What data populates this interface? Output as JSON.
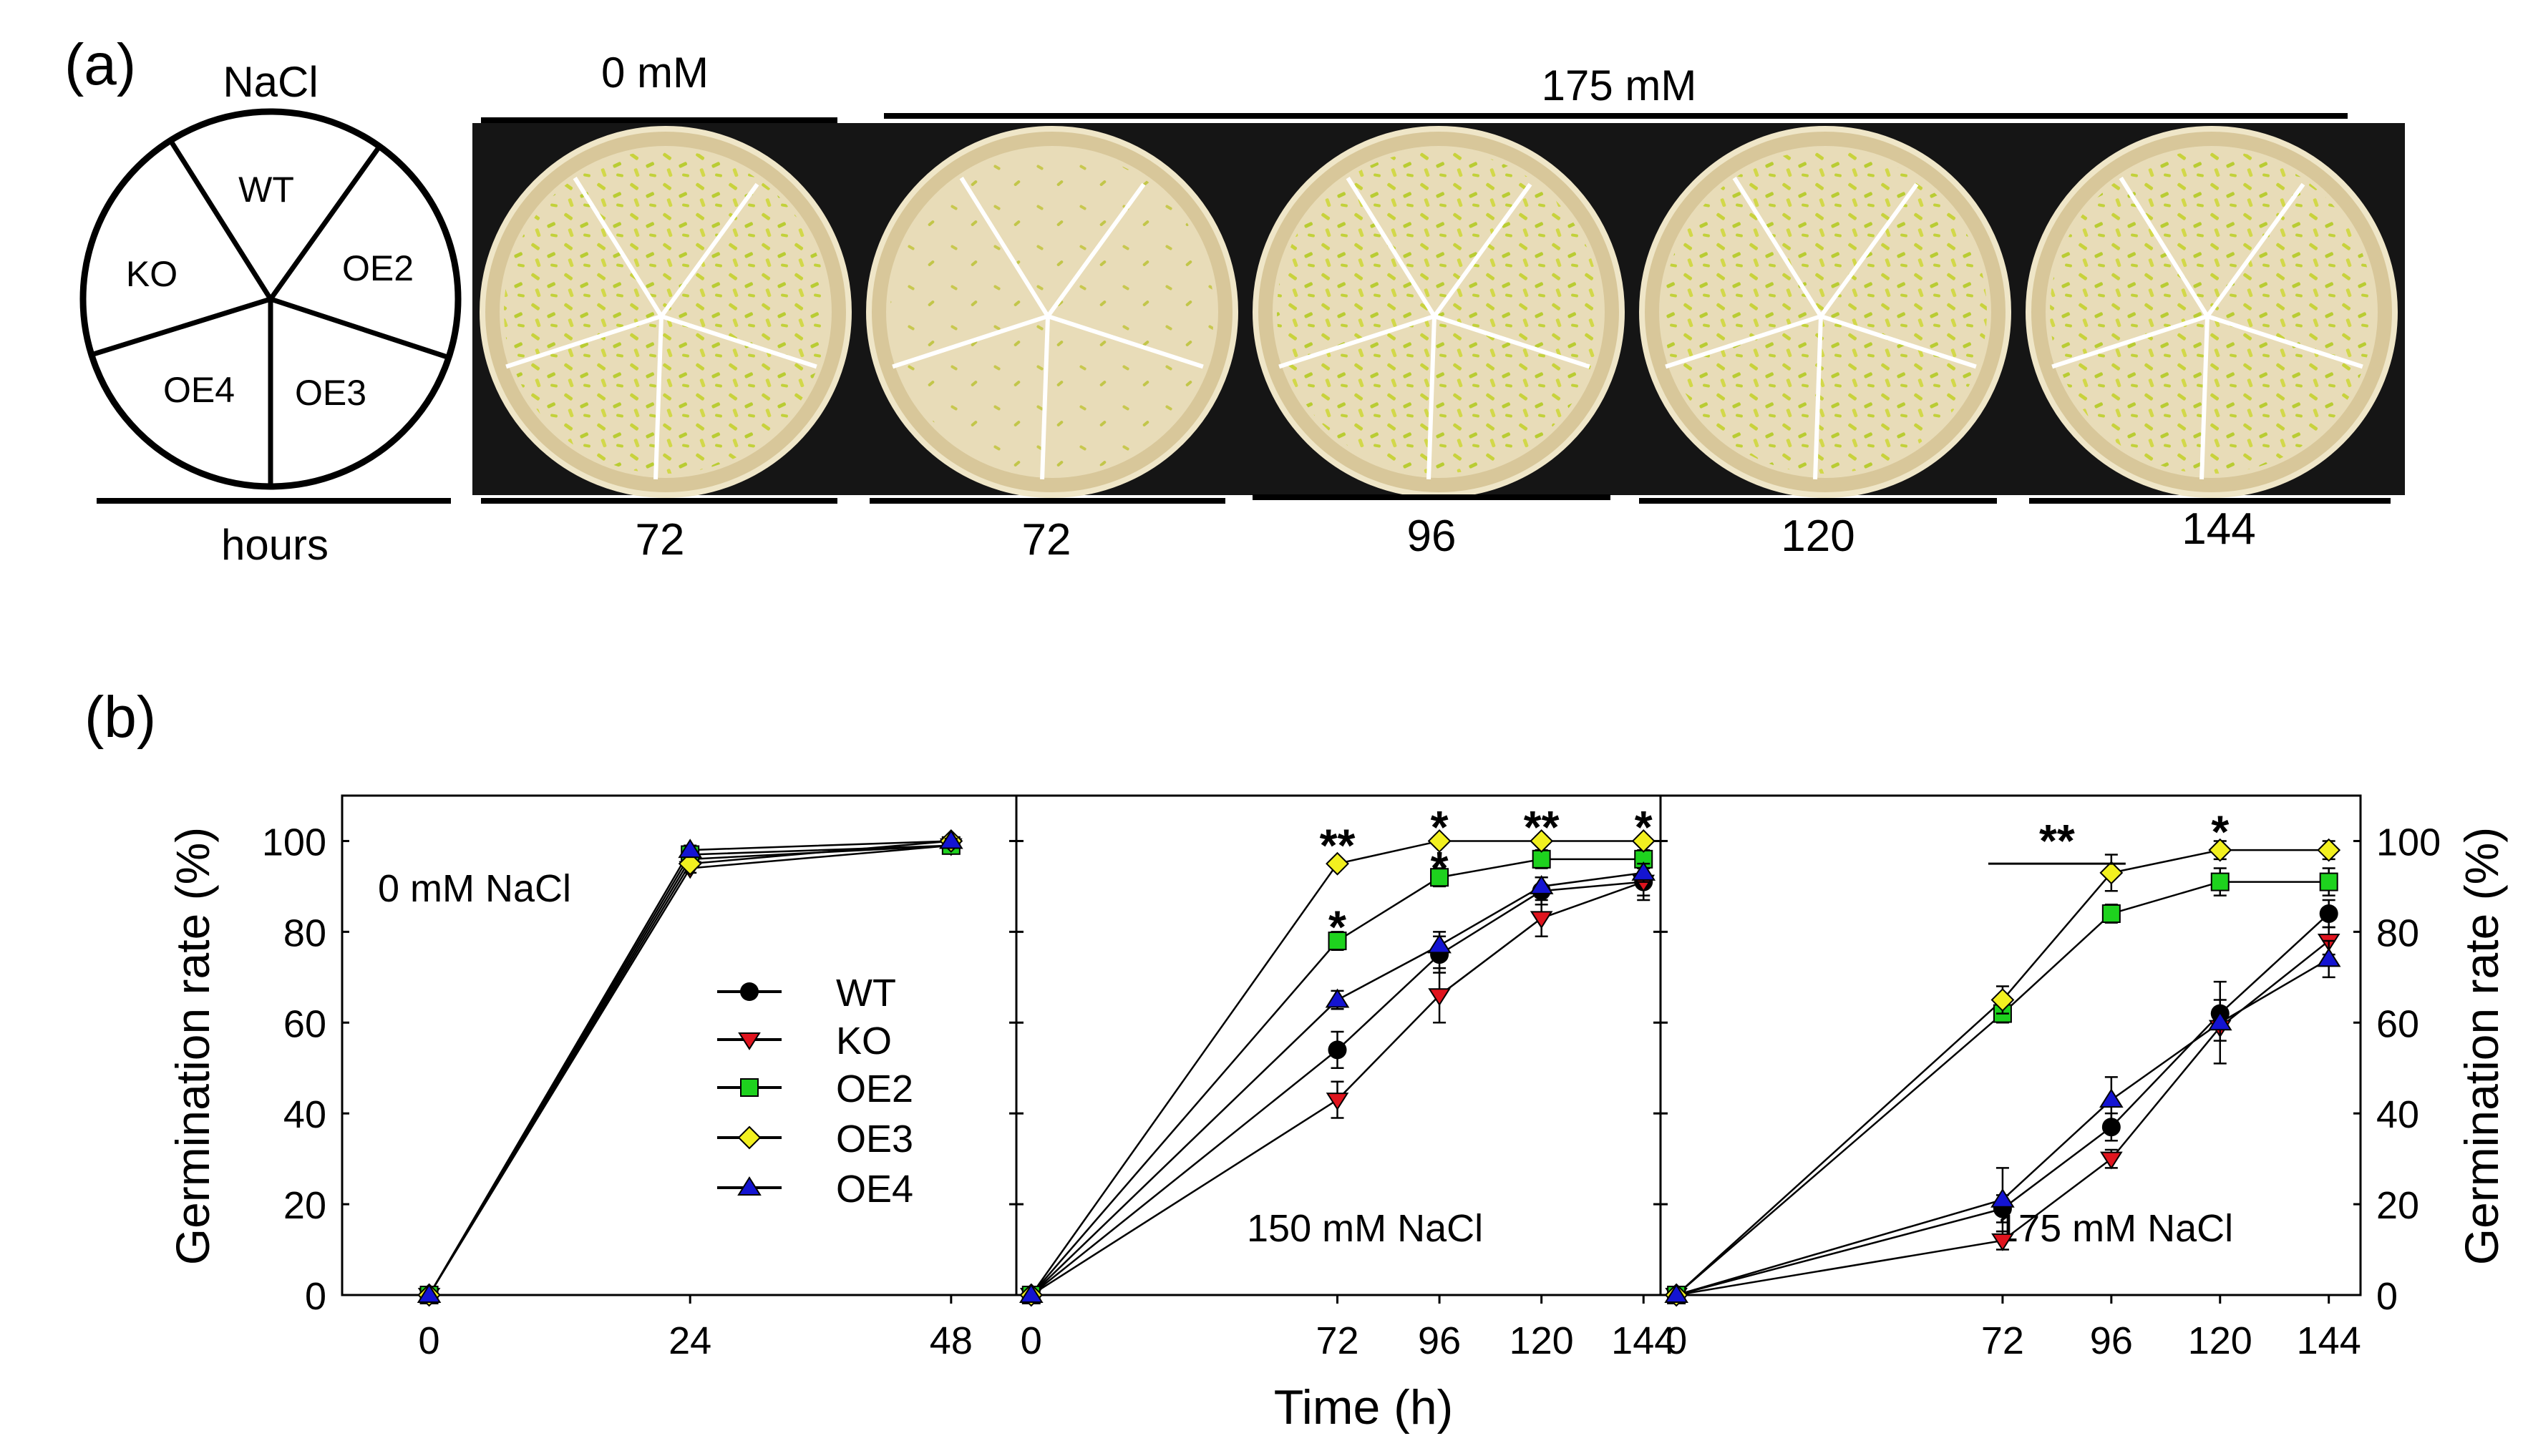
{
  "panel_a": {
    "label": "(a)",
    "legend_title": "NaCl",
    "legend_footer": "hours",
    "segment_labels": [
      "WT",
      "OE2",
      "OE3",
      "OE4",
      "KO"
    ],
    "group_0": "0 mM",
    "group_175": "175 mM",
    "hours": [
      "72",
      "72",
      "96",
      "120",
      "144"
    ]
  },
  "panel_b": {
    "label": "(b)",
    "ylabel": "Germination rate (%)",
    "xlabel": "Time (h)",
    "legend": [
      "WT",
      "KO",
      "OE2",
      "OE3",
      "OE4"
    ]
  },
  "colors": {
    "WT": "#000000",
    "KO": "#e0141e",
    "OE2": "#1ed21e",
    "OE3": "#f2f020",
    "OE4": "#1414d2",
    "seedling": "#c8d23c",
    "agar": "#e8dcb8",
    "plate_bg": "#151515"
  },
  "chart_data": [
    {
      "type": "line",
      "title": "0 mM NaCl",
      "x": [
        0,
        24,
        48
      ],
      "ylim": [
        0,
        110
      ],
      "yticks": [
        0,
        20,
        40,
        60,
        80,
        100
      ],
      "series": [
        {
          "name": "WT",
          "values": [
            0,
            96,
            99
          ],
          "err": [
            0,
            1,
            0.5
          ]
        },
        {
          "name": "KO",
          "values": [
            0,
            94,
            99
          ],
          "err": [
            0,
            1,
            0.5
          ]
        },
        {
          "name": "OE2",
          "values": [
            0,
            97,
            99
          ],
          "err": [
            0,
            1,
            0.5
          ]
        },
        {
          "name": "OE3",
          "values": [
            0,
            95,
            100
          ],
          "err": [
            0,
            1,
            0.5
          ]
        },
        {
          "name": "OE4",
          "values": [
            0,
            98,
            100
          ],
          "err": [
            0,
            1,
            0.5
          ]
        }
      ],
      "annotations": []
    },
    {
      "type": "line",
      "title": "150 mM NaCl",
      "x": [
        0,
        72,
        96,
        120,
        144
      ],
      "ylim": [
        0,
        110
      ],
      "series": [
        {
          "name": "WT",
          "values": [
            0,
            54,
            75,
            89,
            91
          ],
          "err": [
            0,
            4,
            4,
            3,
            3
          ]
        },
        {
          "name": "KO",
          "values": [
            0,
            43,
            66,
            83,
            91
          ],
          "err": [
            0,
            4,
            6,
            4,
            4
          ]
        },
        {
          "name": "OE2",
          "values": [
            0,
            78,
            92,
            96,
            96
          ],
          "err": [
            0,
            2,
            2,
            2,
            2
          ]
        },
        {
          "name": "OE3",
          "values": [
            0,
            95,
            100,
            100,
            100
          ],
          "err": [
            0,
            1,
            1,
            1,
            1
          ]
        },
        {
          "name": "OE4",
          "values": [
            0,
            65,
            77,
            90,
            93
          ],
          "err": [
            0,
            2,
            3,
            2,
            2
          ]
        }
      ],
      "annotations": [
        {
          "text": "**",
          "x": 72,
          "y": 100
        },
        {
          "text": "*",
          "x": 96,
          "y": 104
        },
        {
          "text": "**",
          "x": 120,
          "y": 104
        },
        {
          "text": "*",
          "x": 144,
          "y": 104
        },
        {
          "text": "*",
          "x": 72,
          "y": 82
        },
        {
          "text": "*",
          "x": 96,
          "y": 95
        }
      ]
    },
    {
      "type": "line",
      "title": "175 mM NaCl",
      "x": [
        0,
        72,
        96,
        120,
        144
      ],
      "ylim": [
        0,
        110
      ],
      "series": [
        {
          "name": "WT",
          "values": [
            0,
            19,
            37,
            62,
            84
          ],
          "err": [
            0,
            3,
            3,
            3,
            3
          ]
        },
        {
          "name": "KO",
          "values": [
            0,
            12,
            30,
            59,
            78
          ],
          "err": [
            0,
            2,
            2,
            3,
            3
          ]
        },
        {
          "name": "OE2",
          "values": [
            0,
            62,
            84,
            91,
            91
          ],
          "err": [
            0,
            2,
            2,
            3,
            3
          ]
        },
        {
          "name": "OE3",
          "values": [
            0,
            65,
            93,
            98,
            98
          ],
          "err": [
            0,
            3,
            4,
            2,
            2
          ]
        },
        {
          "name": "OE4",
          "values": [
            0,
            21,
            43,
            60,
            74
          ],
          "err": [
            0,
            7,
            5,
            9,
            4
          ]
        }
      ],
      "annotations": [
        {
          "text": "**",
          "x": 84,
          "y": 101,
          "bar": [
            72,
            96
          ]
        },
        {
          "text": "*",
          "x": 120,
          "y": 103
        }
      ]
    }
  ]
}
